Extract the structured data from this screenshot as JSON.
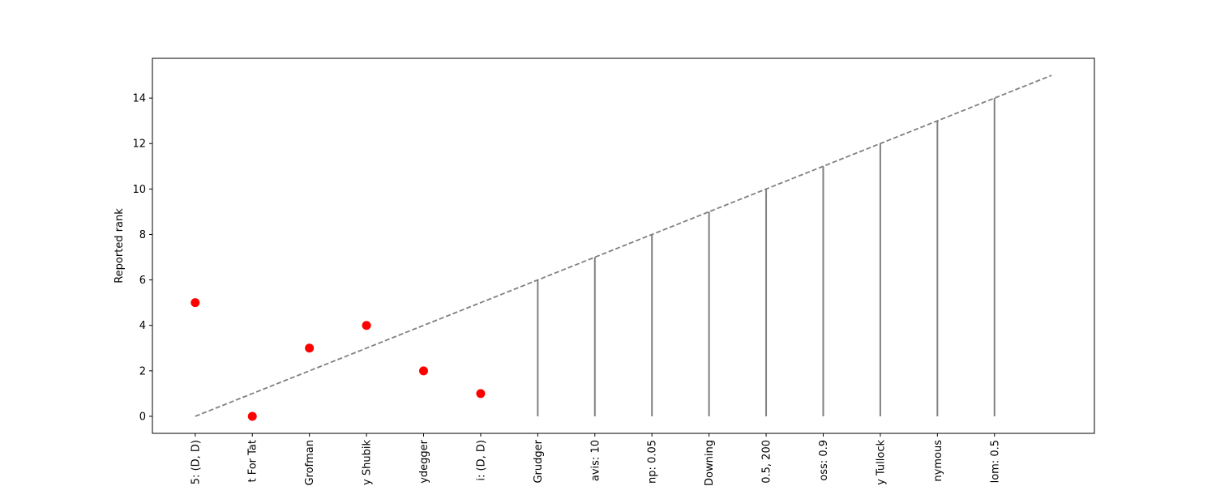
{
  "chart_data": {
    "type": "scatter",
    "title": "",
    "xlabel": "",
    "ylabel": "Reported rank",
    "categories": [
      "5: (D, D)",
      "t For Tat",
      "Grofman",
      "y Shubik",
      "ydegger",
      "i: (D, D)",
      "Grudger",
      "avis: 10",
      "np: 0.05",
      "Downing",
      "0.5, 200",
      "oss: 0.9",
      "y Tullock",
      "nymous",
      "lom: 0.5"
    ],
    "series": [
      {
        "kind": "points",
        "color": "#ff0000",
        "x": [
          0,
          1,
          2,
          3,
          4,
          5
        ],
        "y": [
          5,
          0,
          3,
          4,
          2,
          1
        ]
      },
      {
        "kind": "vlines",
        "color": "#808080",
        "x": [
          6,
          7,
          8,
          9,
          10,
          11,
          12,
          13,
          14
        ],
        "ymin": [
          0,
          0,
          0,
          0,
          0,
          0,
          0,
          0,
          0
        ],
        "ymax": [
          6,
          7,
          8,
          9,
          10,
          11,
          12,
          13,
          14
        ]
      },
      {
        "kind": "dashed-line",
        "color": "#808080",
        "x": [
          0,
          15
        ],
        "y": [
          0,
          15
        ]
      }
    ],
    "xlim": [
      -0.75,
      15.75
    ],
    "ylim": [
      -0.75,
      15.75
    ],
    "yticks": [
      0,
      2,
      4,
      6,
      8,
      10,
      12,
      14
    ],
    "grid": false,
    "legend": "none"
  }
}
